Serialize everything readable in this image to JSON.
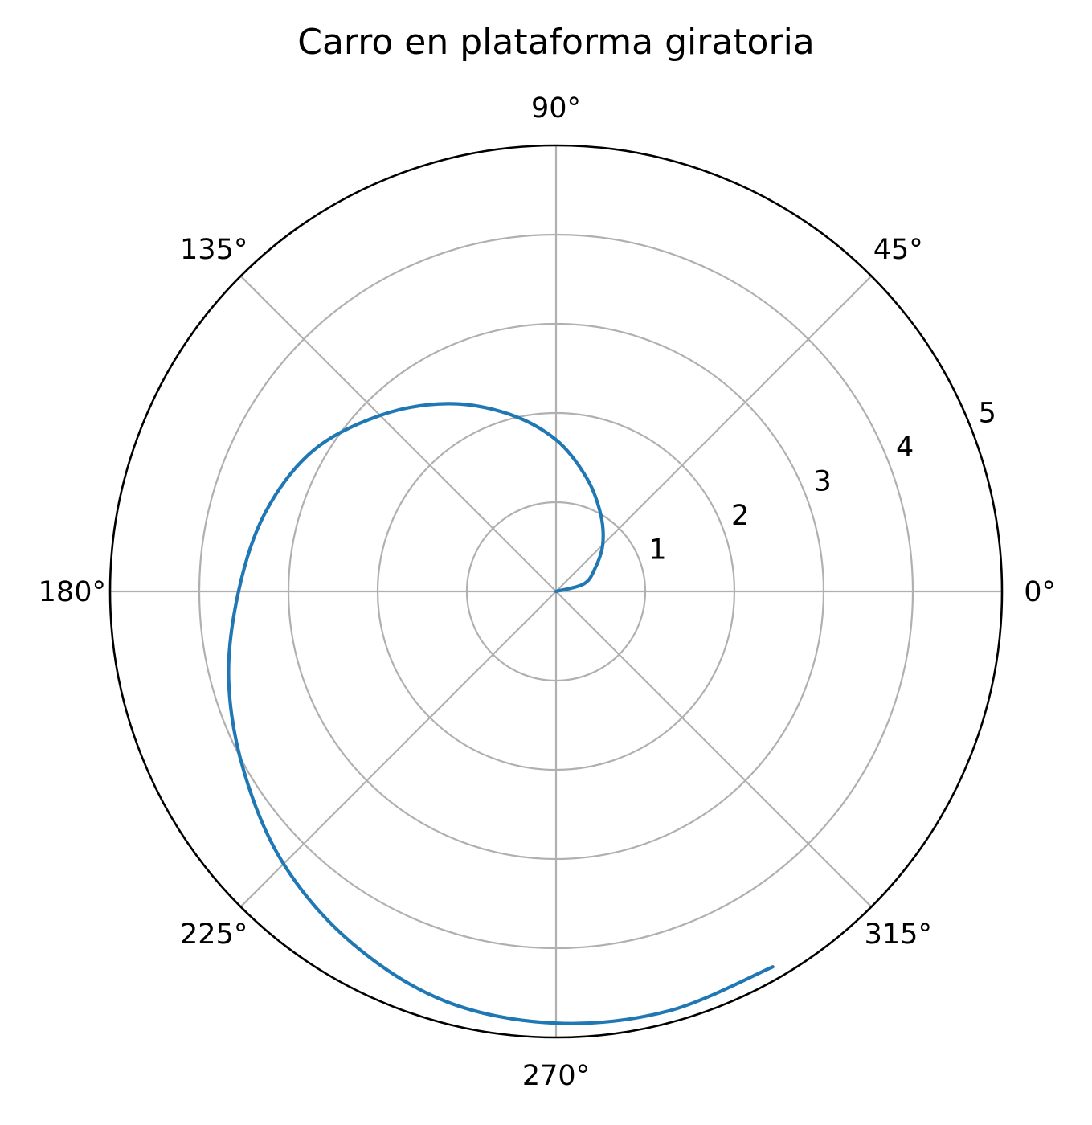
{
  "chart_data": {
    "type": "line",
    "projection": "polar",
    "title": "Carro en plataforma giratoria",
    "theta_tick_labels": [
      "0°",
      "45°",
      "90°",
      "135°",
      "180°",
      "225°",
      "270°",
      "315°"
    ],
    "theta_ticks_deg": [
      0,
      45,
      90,
      135,
      180,
      225,
      270,
      315
    ],
    "r_tick_labels": [
      "1",
      "2",
      "3",
      "4",
      "5"
    ],
    "r_ticks": [
      1,
      2,
      3,
      4,
      5
    ],
    "rlim": [
      0,
      5
    ],
    "grid": true,
    "series": [
      {
        "color": "#1f77b4",
        "theta_deg": [
          0,
          15,
          30,
          45,
          60,
          75,
          90,
          105,
          120,
          135,
          150,
          165,
          180,
          195,
          210,
          225,
          240,
          255,
          270,
          285,
          300
        ],
        "r": [
          0.0,
          0.32,
          0.5,
          0.74,
          1.0,
          1.32,
          1.7,
          2.06,
          2.43,
          2.79,
          3.15,
          3.38,
          3.56,
          3.8,
          4.04,
          4.32,
          4.56,
          4.76,
          4.84,
          4.87,
          4.86
        ]
      }
    ]
  }
}
